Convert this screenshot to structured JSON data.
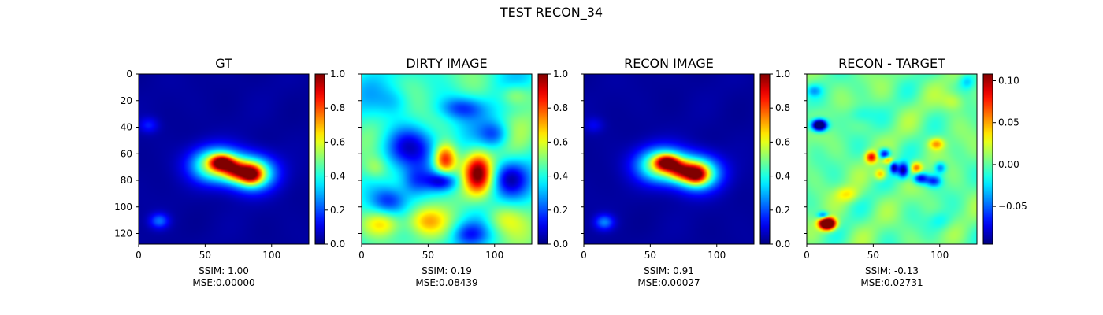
{
  "figure": {
    "title": "TEST RECON_34"
  },
  "chart_data": [
    {
      "type": "heatmap",
      "title": "GT",
      "colormap": "jet",
      "xlim": [
        0,
        128
      ],
      "ylim": [
        128,
        0
      ],
      "xticks": [
        "0",
        "50",
        "100"
      ],
      "yticks": [
        "0",
        "20",
        "40",
        "60",
        "80",
        "100",
        "120"
      ],
      "colorbar": {
        "range": [
          0.0,
          1.0
        ],
        "ticks": [
          "0.0",
          "0.2",
          "0.4",
          "0.6",
          "0.8",
          "1.0"
        ]
      },
      "caption": [
        "SSIM: 1.00",
        "MSE:0.00000"
      ],
      "features": [
        {
          "x": 58,
          "y": 68,
          "w": 13,
          "h": 9,
          "v": 0.58
        },
        {
          "x": 85,
          "y": 74,
          "w": 12,
          "h": 9,
          "v": 0.55
        },
        {
          "x": 62,
          "y": 66,
          "w": 6,
          "h": 4,
          "v": 0.55
        },
        {
          "x": 84,
          "y": 75,
          "w": 6,
          "h": 5,
          "v": 0.5
        },
        {
          "x": 72,
          "y": 72,
          "w": 6,
          "h": 5,
          "v": 0.35
        },
        {
          "x": 15,
          "y": 110,
          "w": 5,
          "h": 4,
          "v": 0.2
        },
        {
          "x": 7,
          "y": 38,
          "w": 5,
          "h": 4,
          "v": 0.12
        }
      ]
    },
    {
      "type": "heatmap",
      "title": "DIRTY IMAGE",
      "colormap": "jet",
      "xlim": [
        0,
        128
      ],
      "ylim": [
        128,
        0
      ],
      "xticks": [
        "0",
        "50",
        "100"
      ],
      "yticks": [],
      "colorbar": {
        "range": [
          0.0,
          1.0
        ],
        "ticks": [
          "0.0",
          "0.2",
          "0.4",
          "0.6",
          "0.8",
          "1.0"
        ]
      },
      "caption": [
        "SSIM: 0.19",
        "MSE:0.08439"
      ],
      "features": [
        {
          "x": 62,
          "y": 64,
          "w": 6,
          "h": 8,
          "v": 0.5
        },
        {
          "x": 87,
          "y": 74,
          "w": 7,
          "h": 10,
          "v": 0.5
        },
        {
          "x": 35,
          "y": 55,
          "w": 14,
          "h": 11,
          "v": -0.32
        },
        {
          "x": 60,
          "y": 80,
          "w": 8,
          "h": 5,
          "v": -0.3
        },
        {
          "x": 110,
          "y": 78,
          "w": 9,
          "h": 9,
          "v": -0.28
        },
        {
          "x": 100,
          "y": 45,
          "w": 8,
          "h": 7,
          "v": -0.22
        },
        {
          "x": 75,
          "y": 25,
          "w": 12,
          "h": 6,
          "v": -0.22
        },
        {
          "x": 20,
          "y": 95,
          "w": 9,
          "h": 7,
          "v": -0.2
        },
        {
          "x": 15,
          "y": 112,
          "w": 10,
          "h": 7,
          "v": 0.25
        },
        {
          "x": 48,
          "y": 110,
          "w": 10,
          "h": 7,
          "v": 0.2
        },
        {
          "x": 105,
          "y": 108,
          "w": 10,
          "h": 8,
          "v": 0.18
        },
        {
          "x": 25,
          "y": 20,
          "w": 9,
          "h": 8,
          "v": -0.12
        },
        {
          "x": 115,
          "y": 15,
          "w": 8,
          "h": 6,
          "v": 0.18
        },
        {
          "x": 80,
          "y": 120,
          "w": 9,
          "h": 6,
          "v": -0.18
        },
        {
          "x": 40,
          "y": 80,
          "w": 8,
          "h": 8,
          "v": -0.2
        },
        {
          "x": 10,
          "y": 70,
          "w": 6,
          "h": 6,
          "v": 0.12
        }
      ]
    },
    {
      "type": "heatmap",
      "title": "RECON IMAGE",
      "colormap": "jet",
      "xlim": [
        0,
        128
      ],
      "ylim": [
        128,
        0
      ],
      "xticks": [
        "0",
        "50",
        "100"
      ],
      "yticks": [],
      "colorbar": {
        "range": [
          0.0,
          1.0
        ],
        "ticks": [
          "0.0",
          "0.2",
          "0.4",
          "0.6",
          "0.8",
          "1.0"
        ]
      },
      "caption": [
        "SSIM: 0.91",
        "MSE:0.00027"
      ],
      "features": [
        {
          "x": 58,
          "y": 68,
          "w": 13,
          "h": 9,
          "v": 0.56
        },
        {
          "x": 85,
          "y": 74,
          "w": 12,
          "h": 9,
          "v": 0.54
        },
        {
          "x": 62,
          "y": 66,
          "w": 6,
          "h": 4,
          "v": 0.55
        },
        {
          "x": 84,
          "y": 75,
          "w": 6,
          "h": 5,
          "v": 0.5
        },
        {
          "x": 72,
          "y": 72,
          "w": 6,
          "h": 5,
          "v": 0.35
        },
        {
          "x": 15,
          "y": 111,
          "w": 5,
          "h": 4,
          "v": 0.22
        },
        {
          "x": 7,
          "y": 38,
          "w": 5,
          "h": 4,
          "v": 0.08
        }
      ]
    },
    {
      "type": "heatmap",
      "title": "RECON - TARGET",
      "colormap": "jet",
      "xlim": [
        0,
        128
      ],
      "ylim": [
        128,
        0
      ],
      "xticks": [
        "0",
        "50",
        "100"
      ],
      "yticks": [],
      "colorbar": {
        "range": [
          -0.095,
          0.108
        ],
        "ticks": [
          "0.10",
          "0.05",
          "0.00",
          "−0.05"
        ],
        "tick_values": [
          0.1,
          0.05,
          0.0,
          -0.05
        ]
      },
      "caption": [
        "SSIM: -0.13",
        "MSE:0.02731"
      ],
      "features": [
        {
          "x": 9,
          "y": 38,
          "w": 4,
          "h": 3,
          "v": -0.15
        },
        {
          "x": 15,
          "y": 112,
          "w": 4,
          "h": 3,
          "v": 0.22
        },
        {
          "x": 12,
          "y": 106,
          "w": 3,
          "h": 2,
          "v": -0.06
        },
        {
          "x": 58,
          "y": 60,
          "w": 3,
          "h": 3,
          "v": -0.09
        },
        {
          "x": 65,
          "y": 70,
          "w": 2,
          "h": 3,
          "v": -0.08
        },
        {
          "x": 72,
          "y": 72,
          "w": 3,
          "h": 4,
          "v": -0.09
        },
        {
          "x": 85,
          "y": 78,
          "w": 4,
          "h": 3,
          "v": -0.08
        },
        {
          "x": 95,
          "y": 80,
          "w": 4,
          "h": 3,
          "v": -0.06
        },
        {
          "x": 100,
          "y": 70,
          "w": 3,
          "h": 3,
          "v": -0.05
        },
        {
          "x": 48,
          "y": 62,
          "w": 3,
          "h": 3,
          "v": 0.08
        },
        {
          "x": 60,
          "y": 64,
          "w": 3,
          "h": 2,
          "v": 0.06
        },
        {
          "x": 82,
          "y": 70,
          "w": 3,
          "h": 3,
          "v": 0.06
        },
        {
          "x": 97,
          "y": 52,
          "w": 4,
          "h": 3,
          "v": 0.05
        },
        {
          "x": 55,
          "y": 75,
          "w": 3,
          "h": 3,
          "v": 0.05
        },
        {
          "x": 30,
          "y": 90,
          "w": 6,
          "h": 4,
          "v": 0.03
        },
        {
          "x": 40,
          "y": 30,
          "w": 7,
          "h": 5,
          "v": -0.02
        },
        {
          "x": 110,
          "y": 20,
          "w": 6,
          "h": 5,
          "v": 0.025
        },
        {
          "x": 100,
          "y": 110,
          "w": 6,
          "h": 5,
          "v": -0.02
        },
        {
          "x": 120,
          "y": 5,
          "w": 4,
          "h": 4,
          "v": -0.03
        },
        {
          "x": 5,
          "y": 12,
          "w": 4,
          "h": 3,
          "v": -0.03
        }
      ]
    }
  ]
}
